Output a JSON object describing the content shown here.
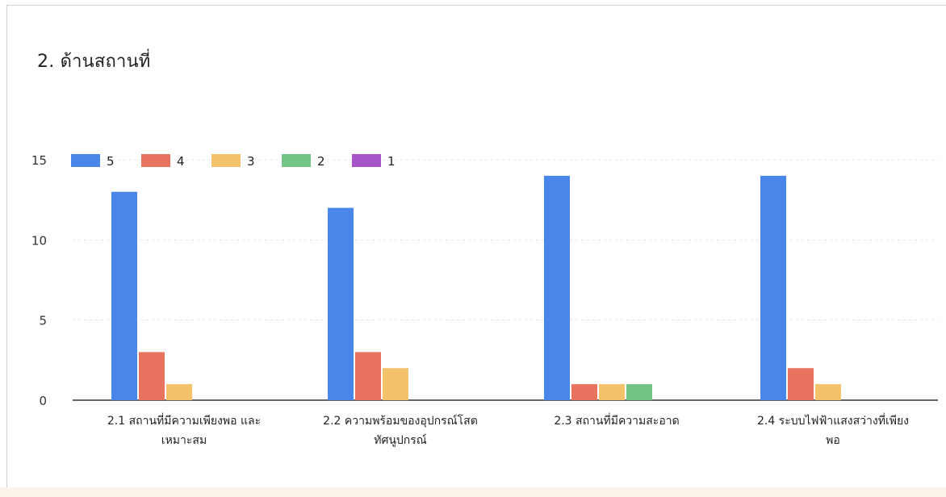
{
  "title": "2. ด้านสถานที่",
  "chart_data": {
    "type": "bar",
    "title": "2. ด้านสถานที่",
    "xlabel": "",
    "ylabel": "",
    "ylim": [
      0,
      15
    ],
    "yticks": [
      0,
      5,
      10,
      15
    ],
    "grid": true,
    "legend": "top-left",
    "categories": [
      [
        "2.1 สถานที่มีความเพียงพอ และ",
        "เหมาะสม"
      ],
      [
        "2.2 ความพร้อมของอุปกรณ์โสต",
        "ทัศนูปกรณ์"
      ],
      [
        "2.3 สถานที่มีความสะอาด"
      ],
      [
        "2.4 ระบบไฟฟ้าแสงสว่างที่เพียง",
        "พอ"
      ]
    ],
    "series": [
      {
        "name": "5",
        "color": "#4a86e8",
        "values": [
          13,
          12,
          14,
          14
        ]
      },
      {
        "name": "4",
        "color": "#e8735f",
        "values": [
          3,
          3,
          1,
          2
        ]
      },
      {
        "name": "3",
        "color": "#f4c26b",
        "values": [
          1,
          2,
          1,
          1
        ]
      },
      {
        "name": "2",
        "color": "#74c487",
        "values": [
          0,
          0,
          1,
          0
        ]
      },
      {
        "name": "1",
        "color": "#a854c9",
        "values": [
          0,
          0,
          0,
          0
        ]
      }
    ]
  }
}
